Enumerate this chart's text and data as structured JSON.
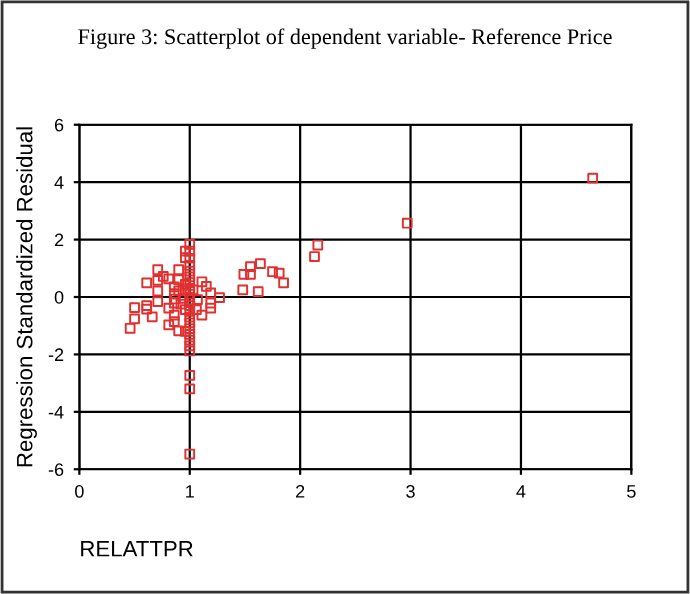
{
  "chart_data": {
    "type": "scatter",
    "title": "Figure 3: Scatterplot of dependent variable- Reference Price",
    "xlabel": "RELATTPR",
    "ylabel": "Regression Standardized Residual",
    "xlim": [
      0,
      5
    ],
    "xticks": [
      0,
      1,
      2,
      3,
      4,
      5
    ],
    "ylim": [
      -6,
      6
    ],
    "yticks": [
      -6,
      -4,
      -2,
      0,
      2,
      4,
      6
    ],
    "grid": true,
    "marker": "square",
    "series": [
      {
        "color": "#e03030",
        "x": [
          4.65,
          2.97,
          2.16,
          2.13,
          1.64,
          1.55,
          1.49,
          1.55,
          1.75,
          1.81,
          1.85,
          1.48,
          1.62,
          1.27,
          1.19,
          1.19,
          1.19,
          1.15,
          1.11,
          1.11,
          1.07,
          1.0,
          1.0,
          1.0,
          1.0,
          1.0,
          1.0,
          1.0,
          1.0,
          1.0,
          1.0,
          1.0,
          1.0,
          1.0,
          1.0,
          1.0,
          1.0,
          1.0,
          1.0,
          1.0,
          1.0,
          1.0,
          1.0,
          0.96,
          0.96,
          0.71,
          0.76,
          0.81,
          0.71,
          0.61,
          0.71,
          0.71,
          0.61,
          0.61,
          0.5,
          0.5,
          0.46,
          0.66,
          0.81,
          0.86,
          0.86,
          0.81,
          0.9,
          0.96,
          0.9,
          0.9,
          0.86,
          0.86,
          0.9,
          0.94,
          0.86,
          0.92,
          0.96,
          0.96,
          0.96,
          0.87,
          1.06,
          1.03
        ],
        "values": [
          4.14,
          2.57,
          1.81,
          1.41,
          1.16,
          1.06,
          0.79,
          0.79,
          0.88,
          0.83,
          0.49,
          0.25,
          0.19,
          -0.02,
          0.14,
          -0.21,
          -0.39,
          0.37,
          0.53,
          -0.63,
          -0.09,
          1.83,
          1.6,
          1.35,
          1.1,
          0.9,
          0.7,
          0.5,
          0.3,
          0.1,
          -0.1,
          -0.3,
          -0.5,
          -0.7,
          -0.9,
          -1.1,
          -1.3,
          -1.5,
          -1.7,
          -1.88,
          -2.73,
          -3.2,
          -5.47,
          1.6,
          1.37,
          0.95,
          0.72,
          0.63,
          0.58,
          0.49,
          0.21,
          -0.16,
          -0.3,
          -0.42,
          -0.37,
          -0.76,
          -1.09,
          -0.69,
          -0.97,
          -0.86,
          -0.63,
          -0.39,
          -1.18,
          -1.2,
          0.95,
          0.6,
          0.35,
          0.12,
          0.21,
          -0.05,
          -0.21,
          -0.25,
          0.44,
          0.25,
          -0.44,
          -0.07,
          -0.44,
          0.25
        ]
      }
    ]
  }
}
